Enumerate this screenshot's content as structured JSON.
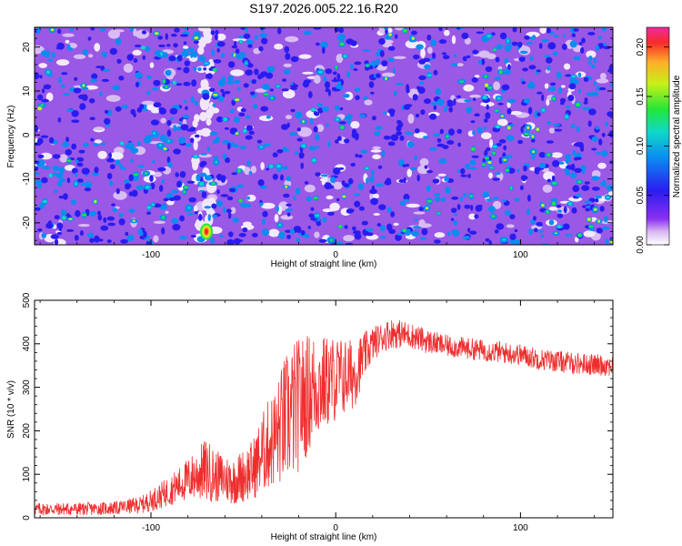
{
  "title": "S197.2026.005.22.16.R20",
  "colors": {
    "trace": "#ee2e2e",
    "frame": "#000000"
  },
  "chart_data": [
    {
      "type": "heatmap",
      "xlabel": "Height of straight line (km)",
      "ylabel": "Frequency (Hz)",
      "xlim": [
        -163,
        150
      ],
      "ylim": [
        -25,
        24.5
      ],
      "xticks": [
        -100,
        0,
        100
      ],
      "xtick_labels": [
        "-100",
        "0",
        "100"
      ],
      "yticks": [
        20,
        10,
        0,
        -10,
        -20
      ],
      "ytick_labels": [
        "20",
        "10",
        "0",
        "-10",
        "-20"
      ],
      "colorbar": {
        "label": "Normalized spectral amplitude",
        "range": [
          0.0,
          0.22
        ],
        "ticks": [
          0.0,
          0.05,
          0.1,
          0.15,
          0.2
        ],
        "tick_labels": [
          "0.00",
          "0.05",
          "0.10",
          "0.15",
          "0.20"
        ],
        "colormap": "rainbow (white, violet, blue, cyan, green, yellow, red, magenta)"
      },
      "description_values": {
        "typical_amplitude": 0.03,
        "background_amplitude": 0.01,
        "peak_amplitude": 0.21,
        "peak_location": {
          "x": -70,
          "y": -22
        }
      }
    },
    {
      "type": "line",
      "xlabel": "Height of straight line (km)",
      "ylabel": "SNR (10 * v/v)",
      "xlim": [
        -163,
        150
      ],
      "ylim": [
        0,
        500
      ],
      "xticks": [
        -100,
        0,
        100
      ],
      "xtick_labels": [
        "-100",
        "0",
        "100"
      ],
      "yticks": [
        0,
        100,
        200,
        300,
        400,
        500
      ],
      "ytick_labels": [
        "0",
        "100",
        "200",
        "300",
        "400",
        "500"
      ],
      "series": [
        {
          "color": "#ee2e2e",
          "envelope": {
            "x": [
              -163,
              -140,
              -120,
              -105,
              -95,
              -85,
              -75,
              -70,
              -65,
              -55,
              -45,
              -38,
              -32,
              -28,
              -22,
              -18,
              -12,
              -6,
              0,
              5,
              10,
              15,
              20,
              25,
              30,
              40,
              50,
              60,
              70,
              80,
              90,
              100,
              110,
              120,
              130,
              140,
              150
            ],
            "mean": [
              20,
              20,
              22,
              30,
              50,
              75,
              100,
              110,
              95,
              85,
              110,
              160,
              190,
              220,
              250,
              270,
              300,
              310,
              320,
              325,
              330,
              370,
              400,
              415,
              425,
              420,
              405,
              395,
              390,
              385,
              380,
              375,
              365,
              360,
              355,
              352,
              350
            ],
            "spread": [
              15,
              15,
              15,
              20,
              30,
              40,
              60,
              75,
              60,
              55,
              70,
              100,
              120,
              150,
              160,
              150,
              130,
              110,
              100,
              90,
              80,
              55,
              40,
              35,
              35,
              30,
              28,
              25,
              25,
              25,
              25,
              25,
              25,
              25,
              25,
              25,
              25
            ]
          }
        }
      ]
    }
  ]
}
